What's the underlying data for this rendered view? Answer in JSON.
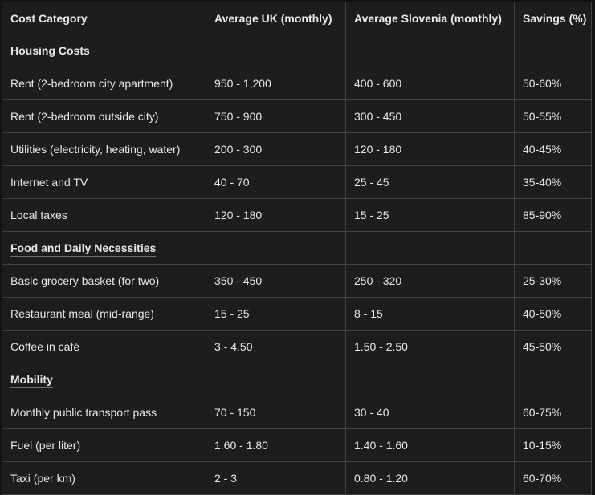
{
  "colors": {
    "page_background": "#131313",
    "cell_background": "#1d1d1d",
    "border": "#414141",
    "text": "#e8e8e6"
  },
  "chart_data": {
    "type": "table",
    "title": "",
    "columns": [
      "Cost Category",
      "Average UK (monthly)",
      "Average Slovenia (monthly)",
      "Savings (%)"
    ],
    "rows": [
      {
        "type": "section",
        "label": "Housing Costs"
      },
      {
        "type": "data",
        "cells": [
          "Rent (2-bedroom city apartment)",
          "950 - 1,200",
          "400 - 600",
          "50-60%"
        ]
      },
      {
        "type": "data",
        "cells": [
          "Rent (2-bedroom outside city)",
          "750 - 900",
          "300 - 450",
          "50-55%"
        ]
      },
      {
        "type": "data",
        "cells": [
          "Utilities (electricity, heating, water)",
          "200 - 300",
          "120 - 180",
          "40-45%"
        ]
      },
      {
        "type": "data",
        "cells": [
          "Internet and TV",
          "40 - 70",
          "25 - 45",
          "35-40%"
        ]
      },
      {
        "type": "data",
        "cells": [
          "Local taxes",
          "120 - 180",
          "15 - 25",
          "85-90%"
        ]
      },
      {
        "type": "section",
        "label": "Food and Daily Necessities"
      },
      {
        "type": "data",
        "cells": [
          "Basic grocery basket (for two)",
          "350 - 450",
          "250 - 320",
          "25-30%"
        ]
      },
      {
        "type": "data",
        "cells": [
          "Restaurant meal (mid-range)",
          "15 - 25",
          "8 - 15",
          "40-50%"
        ]
      },
      {
        "type": "data",
        "cells": [
          "Coffee in café",
          "3 - 4.50",
          "1.50 - 2.50",
          "45-50%"
        ]
      },
      {
        "type": "section",
        "label": "Mobility"
      },
      {
        "type": "data",
        "cells": [
          "Monthly public transport pass",
          "70 - 150",
          "30 - 40",
          "60-75%"
        ]
      },
      {
        "type": "data",
        "cells": [
          "Fuel (per liter)",
          "1.60 - 1.80",
          "1.40 - 1.60",
          "10-15%"
        ]
      },
      {
        "type": "data",
        "cells": [
          "Taxi (per km)",
          "2 - 3",
          "0.80 - 1.20",
          "60-70%"
        ]
      }
    ]
  }
}
